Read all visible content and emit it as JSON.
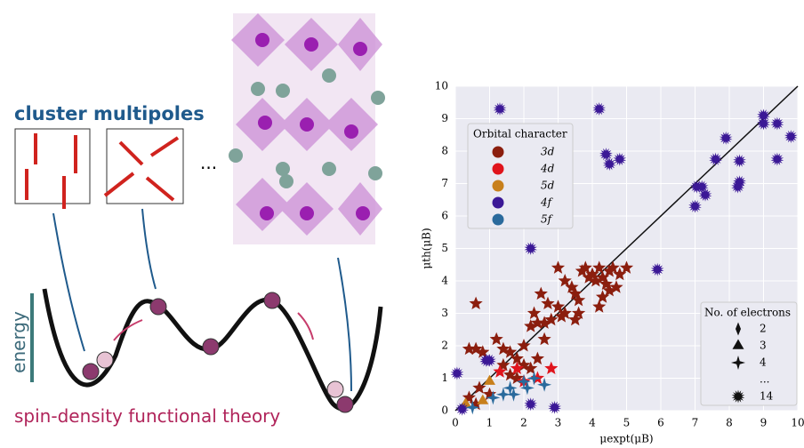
{
  "diagram": {
    "top_label": "cluster multipoles",
    "ellipsis": "...",
    "axis_label": "energy",
    "bottom_label": "spin-density functional theory"
  },
  "chart_data": {
    "type": "scatter",
    "xlabel": "μexpt(μB)",
    "ylabel": "μth(μB)",
    "xlim": [
      0,
      10
    ],
    "xticks": [
      0,
      1,
      2,
      3,
      4,
      5,
      6,
      7,
      8,
      9,
      10
    ],
    "ylim": [
      0,
      10
    ],
    "yticks": [
      0,
      1,
      2,
      3,
      4,
      5,
      6,
      7,
      8,
      9,
      10
    ],
    "grid": true,
    "legend_title": "Orbital character",
    "legend": "upper left",
    "marker_legend": {
      "title": "No. of electrons",
      "entries": [
        "2",
        "3",
        "4",
        "...",
        "14"
      ],
      "position": "lower right"
    },
    "series": [
      {
        "name": "3d",
        "color": "#8b1e0e",
        "marker": "star",
        "x": [
          3.0,
          3.2,
          3.4,
          3.5,
          3.6,
          3.7,
          3.8,
          3.9,
          4.0,
          4.1,
          4.2,
          4.3,
          4.4,
          4.5,
          4.6,
          4.7,
          4.8,
          5.0,
          4.3,
          4.5,
          4.2,
          3.0,
          3.1,
          2.8,
          2.6,
          2.4,
          2.2,
          2.7,
          2.3,
          3.5,
          3.2,
          0.6,
          0.4,
          0.6,
          0.8,
          1.2,
          1.4,
          1.6,
          1.8,
          2.0,
          2.2,
          1.4,
          1.6,
          1.8,
          2.4,
          0.7,
          1.0,
          0.4,
          0.6,
          2.0,
          3.6,
          2.5,
          2.6
        ],
        "values": [
          4.4,
          4.0,
          3.8,
          3.6,
          3.4,
          4.3,
          4.4,
          4.1,
          4.2,
          4.0,
          4.4,
          4.1,
          3.9,
          4.3,
          4.4,
          3.8,
          4.2,
          4.4,
          3.5,
          3.7,
          3.2,
          3.2,
          2.9,
          2.8,
          2.7,
          2.7,
          2.6,
          3.3,
          3.0,
          2.8,
          3.0,
          3.3,
          1.9,
          1.9,
          1.8,
          2.2,
          1.9,
          1.8,
          1.6,
          1.4,
          1.3,
          1.4,
          1.1,
          1.0,
          1.6,
          0.7,
          0.5,
          0.4,
          0.2,
          2.0,
          3.0,
          3.6,
          2.2
        ]
      },
      {
        "name": "4d",
        "color": "#e0141c",
        "marker": "star",
        "x": [
          1.3,
          1.8,
          2.4,
          2.8,
          2.0
        ],
        "values": [
          1.2,
          1.3,
          1.0,
          1.3,
          0.9
        ]
      },
      {
        "name": "5d",
        "color": "#c8801c",
        "marker": "triangle",
        "x": [
          1.0,
          0.8,
          0.3
        ],
        "values": [
          0.9,
          0.3,
          0.2
        ]
      },
      {
        "name": "4f",
        "color": "#3b1896",
        "marker": "spiky",
        "x": [
          1.3,
          4.2,
          4.4,
          4.5,
          4.8,
          9.0,
          9.0,
          9.4,
          9.8,
          7.9,
          7.6,
          8.3,
          9.4,
          8.3,
          8.25,
          7.05,
          7.2,
          7.3,
          7.0,
          5.9,
          2.2,
          0.05,
          0.9,
          1.0,
          2.2,
          2.9,
          0.2
        ],
        "values": [
          9.3,
          9.3,
          7.9,
          7.6,
          7.75,
          9.1,
          8.85,
          8.85,
          8.45,
          8.4,
          7.75,
          7.7,
          7.75,
          7.05,
          6.9,
          6.9,
          6.9,
          6.65,
          6.3,
          4.35,
          5.0,
          1.15,
          1.55,
          1.55,
          0.2,
          0.1,
          0.05
        ]
      },
      {
        "name": "5f",
        "color": "#2a6a9c",
        "marker": "fourstar",
        "x": [
          1.1,
          1.4,
          1.7,
          2.0,
          2.3,
          2.6,
          2.1,
          0.5,
          1.6
        ],
        "values": [
          0.4,
          0.5,
          0.5,
          0.9,
          1.0,
          0.8,
          0.7,
          0.1,
          0.7
        ]
      }
    ]
  }
}
